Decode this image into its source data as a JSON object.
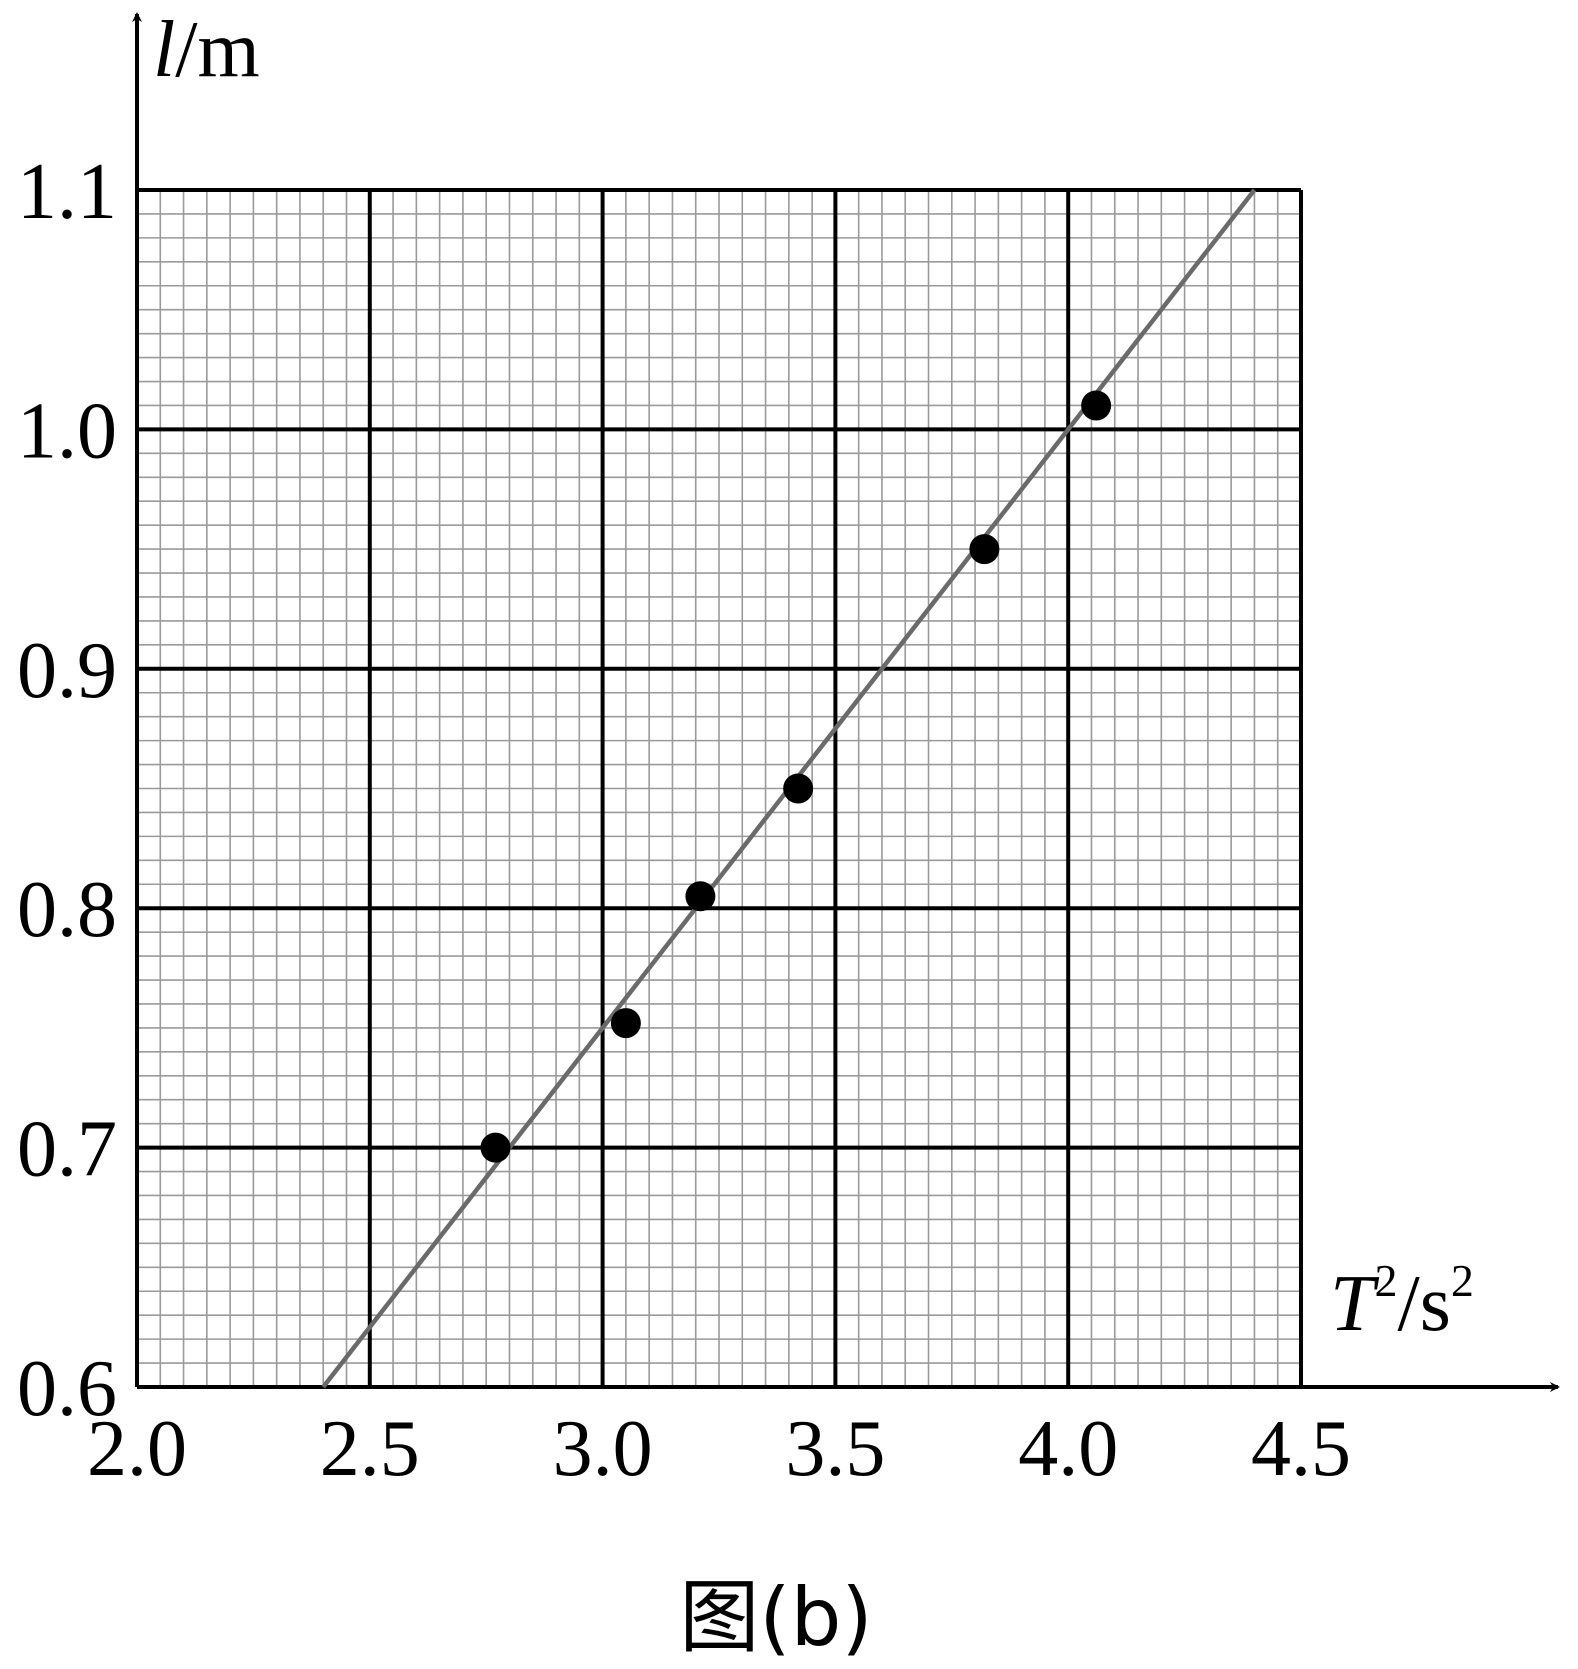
{
  "chart_data": {
    "type": "scatter",
    "caption": "图(b)",
    "xlabel": {
      "var": "T",
      "sup": "2",
      "unit": "/s",
      "unit_sup": "2"
    },
    "ylabel": {
      "var": "l",
      "unit": "/m"
    },
    "xlim": [
      2.0,
      4.5
    ],
    "ylim": [
      0.6,
      1.1
    ],
    "x_major_step": 0.5,
    "y_major_step": 0.1,
    "minor_per_major": 10,
    "xticks": [
      "2.0",
      "2.5",
      "3.0",
      "3.5",
      "4.0",
      "4.5"
    ],
    "yticks": [
      "0.6",
      "0.7",
      "0.8",
      "0.9",
      "1.0",
      "1.1"
    ],
    "grid": true,
    "points": [
      {
        "x": 2.77,
        "y": 0.7
      },
      {
        "x": 3.05,
        "y": 0.752
      },
      {
        "x": 3.21,
        "y": 0.805
      },
      {
        "x": 3.42,
        "y": 0.85
      },
      {
        "x": 3.82,
        "y": 0.95
      },
      {
        "x": 4.06,
        "y": 1.01
      }
    ],
    "fit_line": {
      "x": [
        2.4,
        4.4
      ],
      "y": [
        0.6,
        1.1
      ]
    },
    "colors": {
      "grid_minor": "#9a9a9a",
      "grid_major": "#000000",
      "fit": "#6a6a6a",
      "points": "#000000"
    }
  }
}
